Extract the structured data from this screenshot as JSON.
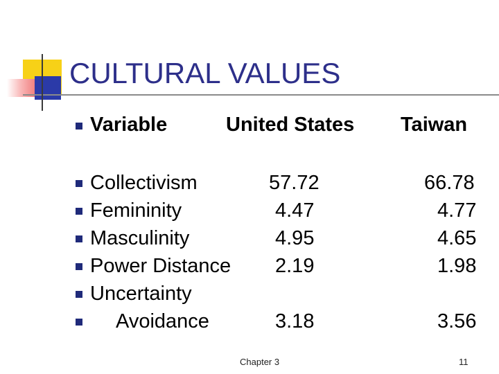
{
  "slide": {
    "title": "CULTURAL VALUES",
    "header": {
      "variable": "Variable",
      "united_states": "United States",
      "taiwan": "Taiwan"
    },
    "rows": [
      {
        "label": "Collectivism",
        "us": "57.72",
        "taiwan": "66.78"
      },
      {
        "label": "Femininity",
        "us": "4.47",
        "taiwan": "4.77"
      },
      {
        "label": "Masculinity",
        "us": "4.95",
        "taiwan": "4.65"
      },
      {
        "label": "Power Distance",
        "us": "2.19",
        "taiwan": "1.98"
      },
      {
        "label": "Uncertainty"
      },
      {
        "label": "Avoidance",
        "us": "3.18",
        "taiwan": "3.56"
      }
    ],
    "footer": {
      "chapter": "Chapter 3",
      "page_number": "11"
    },
    "colors": {
      "title": "#2d2f8a",
      "bullet": "#1f2a7a",
      "accent_yellow": "#f7d117",
      "accent_red": "#e63b3b",
      "accent_blue": "#2b3aa8"
    }
  }
}
